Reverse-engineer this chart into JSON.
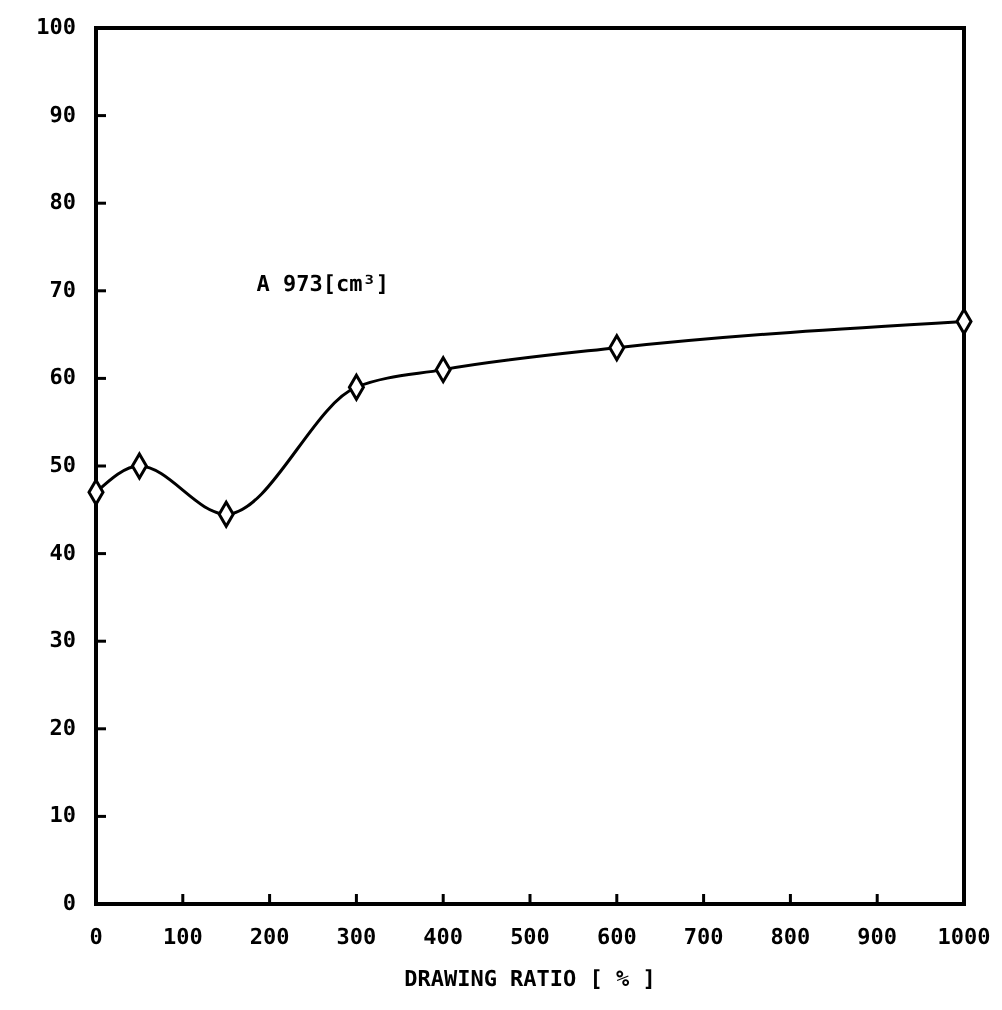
{
  "chart_data": {
    "type": "line",
    "xlabel": "DRAWING RATIO [ % ]",
    "annotations": [
      "A 973[cm³]"
    ],
    "x": [
      0,
      50,
      150,
      300,
      400,
      600,
      1000
    ],
    "series": [
      {
        "color": "#000000",
        "values": [
          47,
          50,
          44.5,
          59,
          61,
          63.5,
          66.5
        ]
      }
    ],
    "xlim": [
      0,
      1000
    ],
    "ylim": [
      0,
      100
    ],
    "xticks": [
      0,
      100,
      200,
      300,
      400,
      500,
      600,
      700,
      800,
      900,
      1000
    ],
    "yticks": [
      0,
      10,
      20,
      30,
      40,
      50,
      60,
      70,
      80,
      90,
      100
    ],
    "marker": "diamond",
    "line_style": "solid"
  }
}
